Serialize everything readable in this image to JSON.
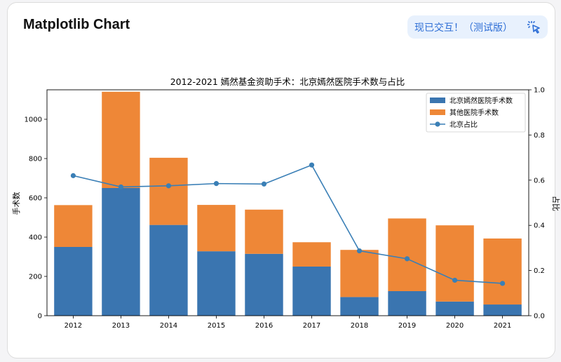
{
  "header": {
    "title": "Matplotlib Chart",
    "badge_label": "现已交互！（测试版）",
    "badge_icon": "cursor-click-icon"
  },
  "colors": {
    "blue": "#3a75b0",
    "orange": "#ee8737",
    "line": "#3a7fb6"
  },
  "chart_data": {
    "type": "bar",
    "title": "2012-2021 嫣然基金资助手术：北京嫣然医院手术数与占比",
    "xlabel": "",
    "ylabel": "手术数",
    "y2label": "占比",
    "categories": [
      "2012",
      "2013",
      "2014",
      "2015",
      "2016",
      "2017",
      "2018",
      "2019",
      "2020",
      "2021"
    ],
    "stacked": true,
    "series": [
      {
        "name": "北京嫣然医院手术数",
        "values": [
          350,
          650,
          462,
          328,
          315,
          250,
          95,
          125,
          72,
          57
        ]
      },
      {
        "name": "其他医院手术数",
        "values": [
          213,
          490,
          342,
          236,
          225,
          124,
          240,
          370,
          388,
          336
        ]
      }
    ],
    "line_series": {
      "name": "北京占比",
      "axis": "right",
      "values": [
        0.62,
        0.57,
        0.575,
        0.585,
        0.583,
        0.667,
        0.287,
        0.252,
        0.157,
        0.143
      ]
    },
    "ylim": [
      0,
      1150
    ],
    "yticks": [
      0,
      200,
      400,
      600,
      800,
      1000
    ],
    "y2lim": [
      0,
      1.0
    ],
    "y2ticks": [
      "0.0",
      "0.2",
      "0.4",
      "0.6",
      "0.8",
      "1.0"
    ],
    "legend": "top-right",
    "grid": false
  }
}
